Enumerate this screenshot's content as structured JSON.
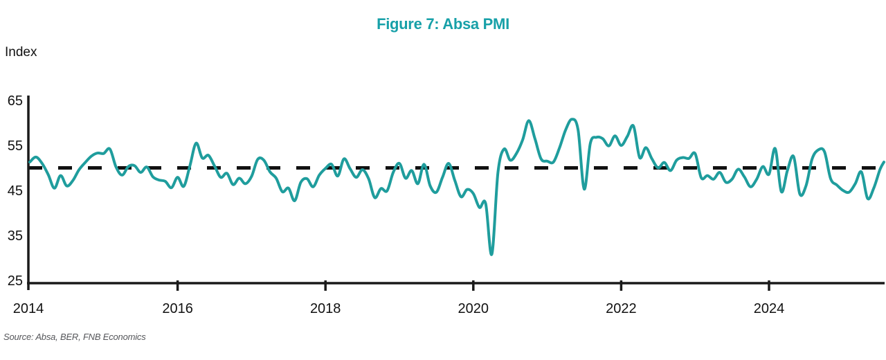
{
  "title": "Figure 7: Absa PMI",
  "y_axis_label": "Index",
  "source": "Source: Absa, BER, FNB Economics",
  "colors": {
    "title_teal": "#17A0A8",
    "line_teal": "#1F9D9D",
    "axis_black": "#1A1A1A",
    "reference_black": "#111111",
    "source_gray": "#55565A"
  },
  "chart_data": {
    "type": "line",
    "title": "Figure 7: Absa PMI",
    "xlabel": "",
    "ylabel": "Index",
    "ylim": [
      25,
      65
    ],
    "yticks": [
      65,
      55,
      45,
      35,
      25
    ],
    "xticks": [
      2014,
      2016,
      2018,
      2020,
      2022,
      2024
    ],
    "x_start": "2014-01",
    "x_frequency": "monthly",
    "grid": false,
    "legend": "none",
    "reference_line": {
      "value": 50,
      "style": "dashed",
      "color": "#111111"
    },
    "series": [
      {
        "name": "Absa PMI",
        "color": "#1F9D9D",
        "values": [
          51.3,
          52.4,
          51.0,
          48.5,
          45.5,
          48.3,
          46.0,
          47.2,
          49.6,
          51.2,
          52.6,
          53.3,
          53.2,
          54.2,
          50.2,
          48.4,
          50.3,
          50.5,
          49.0,
          50.2,
          48.0,
          47.3,
          47.0,
          45.6,
          47.9,
          45.9,
          50.5,
          55.5,
          52.2,
          52.8,
          50.4,
          47.9,
          48.8,
          46.3,
          47.7,
          46.5,
          48.1,
          51.9,
          51.7,
          49.1,
          47.7,
          44.7,
          45.5,
          42.7,
          46.8,
          47.6,
          45.8,
          48.4,
          49.9,
          50.8,
          48.2,
          52.0,
          49.8,
          47.9,
          49.6,
          47.6,
          43.4,
          45.4,
          44.9,
          49.0,
          51.0,
          47.7,
          49.4,
          46.5,
          50.8,
          46.0,
          44.6,
          47.9,
          51.0,
          47.2,
          43.6,
          45.2,
          44.3,
          41.2,
          42.1,
          30.8,
          49.0,
          54.2,
          51.7,
          53.2,
          56.2,
          60.5,
          56.5,
          52.0,
          51.5,
          51.3,
          54.5,
          58.5,
          60.8,
          58.5,
          45.3,
          55.5,
          56.8,
          56.5,
          54.9,
          57.1,
          55.0,
          57.0,
          59.3,
          52.3,
          54.5,
          52.0,
          50.0,
          51.2,
          49.4,
          51.7,
          52.3,
          52.1,
          53.2,
          47.8,
          48.3,
          47.5,
          49.0,
          46.8,
          47.5,
          49.7,
          48.0,
          45.8,
          47.5,
          50.3,
          48.6,
          54.3,
          44.7,
          49.5,
          52.5,
          44.2,
          46.0,
          52.0,
          54.0,
          53.6,
          47.6,
          46.2,
          45.0,
          44.6,
          46.5,
          49.1,
          43.2,
          45.5,
          49.6,
          51.3
        ]
      }
    ]
  }
}
